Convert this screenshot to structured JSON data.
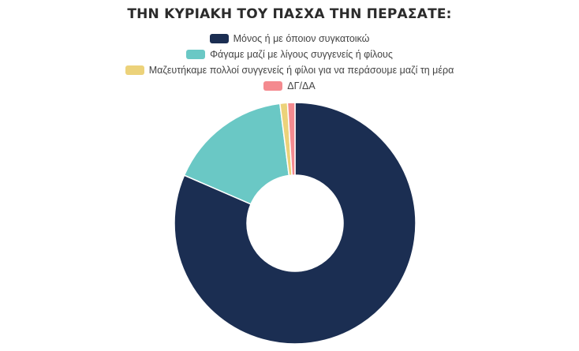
{
  "chart_data": {
    "type": "pie",
    "variant": "doughnut",
    "title": "ΤΗΝ ΚΥΡΙΑΚΗ ΤΟΥ ΠΑΣΧΑ ΤΗΝ ΠΕΡΑΣΑΤΕ:",
    "legend_position": "top",
    "categories": [
      "Μόνος ή με όποιον συγκατοικώ",
      "Φάγαμε μαζί με λίγους συγγενείς ή φίλους",
      "Μαζευτήκαμε πολλοί συγγενείς ή φίλοι για να περάσουμε μαζί τη μέρα",
      "ΔΓ/ΔΑ"
    ],
    "values": [
      81.5,
      16.5,
      1.0,
      1.0
    ],
    "colors": [
      "#1b2e52",
      "#6ac8c5",
      "#ecd27a",
      "#f48a8f"
    ]
  }
}
